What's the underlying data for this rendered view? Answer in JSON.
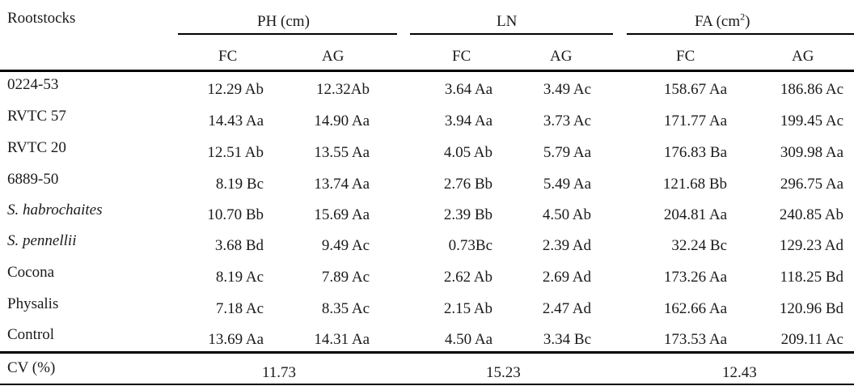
{
  "table": {
    "corner_label": "Rootstocks",
    "groups": [
      {
        "label": "PH (cm)"
      },
      {
        "label": "LN"
      },
      {
        "label": "FA (cm",
        "sup": "2",
        "suffix": ")"
      }
    ],
    "subheaders": [
      "FC",
      "AG",
      "FC",
      "AG",
      "FC",
      "AG"
    ],
    "rows": [
      {
        "name": "0224-53",
        "italic": false,
        "values": [
          "12.29 Ab",
          "12.32Ab",
          "3.64 Aa",
          "3.49 Ac",
          "158.67 Aa",
          "186.86 Ac"
        ]
      },
      {
        "name": "RVTC 57",
        "italic": false,
        "values": [
          "14.43 Aa",
          "14.90 Aa",
          "3.94 Aa",
          "3.73 Ac",
          "171.77 Aa",
          "199.45 Ac"
        ]
      },
      {
        "name": "RVTC 20",
        "italic": false,
        "values": [
          "12.51 Ab",
          "13.55 Aa",
          "4.05 Ab",
          "5.79 Aa",
          "176.83 Ba",
          "309.98 Aa"
        ]
      },
      {
        "name": "6889-50",
        "italic": false,
        "values": [
          "8.19 Bc",
          "13.74 Aa",
          "2.76 Bb",
          "5.49 Aa",
          "121.68 Bb",
          "296.75 Aa"
        ]
      },
      {
        "name": "S. habrochaites",
        "italic": true,
        "values": [
          "10.70 Bb",
          "15.69 Aa",
          "2.39 Bb",
          "4.50 Ab",
          "204.81 Aa",
          "240.85 Ab"
        ]
      },
      {
        "name": "S. pennellii",
        "italic": true,
        "values": [
          "3.68 Bd",
          "9.49 Ac",
          "0.73Bc",
          "2.39 Ad",
          "32.24 Bc",
          "129.23 Ad"
        ]
      },
      {
        "name": "Cocona",
        "italic": false,
        "values": [
          "8.19 Ac",
          "7.89 Ac",
          "2.62 Ab",
          "2.69 Ad",
          "173.26 Aa",
          "118.25 Bd"
        ]
      },
      {
        "name": "Physalis",
        "italic": false,
        "values": [
          "7.18 Ac",
          "8.35 Ac",
          "2.15 Ab",
          "2.47 Ad",
          "162.66 Aa",
          "120.96 Bd"
        ]
      },
      {
        "name": "Control",
        "italic": false,
        "values": [
          "13.69 Aa",
          "14.31 Aa",
          "4.50 Aa",
          "3.34 Bc",
          "173.53 Aa",
          "209.11 Ac"
        ]
      }
    ],
    "cv": {
      "label": "CV (%)",
      "values": [
        "11.73",
        "15.23",
        "12.43"
      ]
    }
  }
}
